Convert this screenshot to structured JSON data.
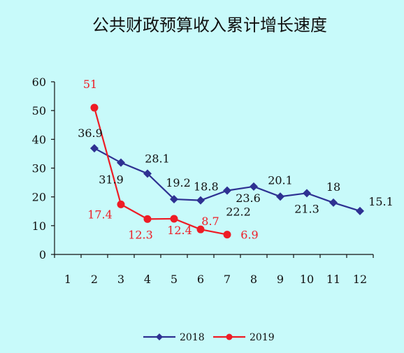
{
  "chart_data": {
    "type": "line",
    "title": "公共财政预算收入累计增长速度",
    "xlabel": "",
    "ylabel": "",
    "x": [
      "1",
      "2",
      "3",
      "4",
      "5",
      "6",
      "7",
      "8",
      "9",
      "10",
      "11",
      "12"
    ],
    "ylim": [
      0,
      60
    ],
    "yticks": [
      "0",
      "10",
      "20",
      "30",
      "40",
      "50",
      "60"
    ],
    "grid": false,
    "legend": "bottom",
    "series": [
      {
        "name": "2018",
        "color": "#2E3192",
        "marker": "diamond",
        "x": [
          2,
          3,
          4,
          5,
          6,
          7,
          8,
          9,
          10,
          11,
          12
        ],
        "values": [
          36.9,
          31.9,
          28.1,
          19.2,
          18.8,
          22.2,
          23.6,
          20.1,
          21.3,
          18,
          15.1
        ],
        "labels": [
          "36.9",
          "31.9",
          "28.1",
          "19.2",
          "18.8",
          "22.2",
          "23.6",
          "20.1",
          "21.3",
          "18",
          "15.1"
        ]
      },
      {
        "name": "2019",
        "color": "#EE1C25",
        "marker": "circle",
        "x": [
          2,
          3,
          4,
          5,
          6,
          7
        ],
        "values": [
          51,
          17.4,
          12.3,
          12.4,
          8.7,
          6.9
        ],
        "labels": [
          "51",
          "17.4",
          "12.3",
          "12.4",
          "8.7",
          "6.9"
        ]
      }
    ]
  }
}
